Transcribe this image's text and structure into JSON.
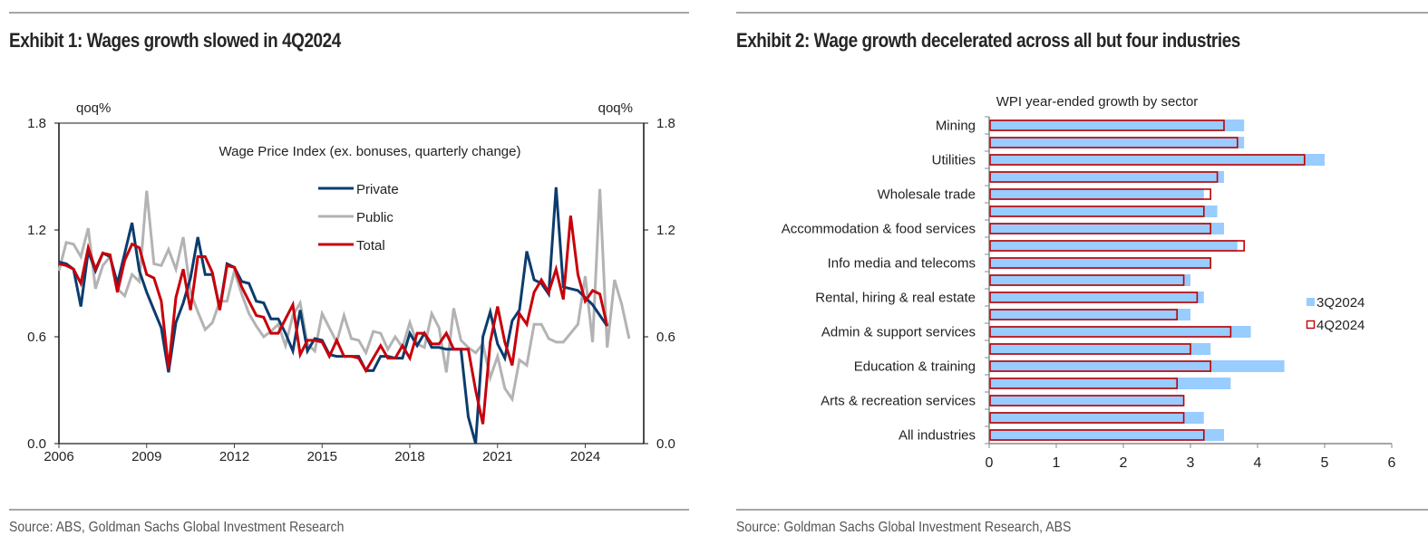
{
  "exhibit1": {
    "title": "Exhibit 1: Wages growth slowed in 4Q2024",
    "source": "Source: ABS, Goldman Sachs Global Investment Research"
  },
  "exhibit2": {
    "title": "Exhibit 2: Wage growth decelerated across all but four industries",
    "source": "Source: Goldman Sachs Global Investment Research, ABS"
  },
  "chart_data": [
    {
      "type": "line",
      "title": "Wage Price Index (ex. bonuses, quarterly change)",
      "ylabel_left": "qoq%",
      "ylabel_right": "qoq%",
      "xlabel": "",
      "xlim": [
        2006,
        2026
      ],
      "ylim": [
        0,
        1.8
      ],
      "x_ticks": [
        2006,
        2009,
        2012,
        2015,
        2018,
        2021,
        2024
      ],
      "y_ticks": [
        "0.0",
        "0.6",
        "1.2",
        "1.8"
      ],
      "legend_position": "upper-center",
      "grid": false,
      "x_start": 2006.0,
      "x_step": 0.25,
      "series": [
        {
          "name": "Private",
          "color": "#0b3c6e",
          "values": [
            1.02,
            1.01,
            0.98,
            0.77,
            1.08,
            0.97,
            1.07,
            1.05,
            0.9,
            1.07,
            1.24,
            0.97,
            0.85,
            0.75,
            0.65,
            0.4,
            0.68,
            0.79,
            0.93,
            1.16,
            0.95,
            0.95,
            0.76,
            1.01,
            0.99,
            0.91,
            0.9,
            0.8,
            0.79,
            0.7,
            0.7,
            0.62,
            0.52,
            0.75,
            0.52,
            0.59,
            0.58,
            0.5,
            0.49,
            0.49,
            0.49,
            0.49,
            0.41,
            0.41,
            0.49,
            0.49,
            0.48,
            0.48,
            0.62,
            0.55,
            0.62,
            0.54,
            0.54,
            0.53,
            0.53,
            0.53,
            0.15,
            0.0,
            0.6,
            0.74,
            0.56,
            0.48,
            0.69,
            0.75,
            1.08,
            0.92,
            0.9,
            0.84,
            1.44,
            0.88,
            0.87,
            0.86,
            0.82,
            0.78,
            0.72,
            0.66
          ]
        },
        {
          "name": "Public",
          "color": "#b3b3b3",
          "values": [
            0.97,
            1.13,
            1.12,
            1.05,
            1.21,
            0.87,
            1.0,
            1.05,
            0.87,
            0.83,
            0.95,
            0.91,
            1.42,
            1.01,
            1.0,
            1.09,
            0.98,
            1.16,
            0.85,
            0.74,
            0.64,
            0.68,
            0.8,
            0.8,
            0.97,
            0.84,
            0.73,
            0.66,
            0.6,
            0.63,
            0.67,
            0.55,
            0.72,
            0.79,
            0.56,
            0.52,
            0.73,
            0.65,
            0.57,
            0.72,
            0.59,
            0.58,
            0.51,
            0.63,
            0.62,
            0.53,
            0.6,
            0.54,
            0.68,
            0.56,
            0.54,
            0.73,
            0.65,
            0.4,
            0.76,
            0.58,
            0.54,
            0.51,
            0.56,
            0.37,
            0.49,
            0.31,
            0.25,
            0.47,
            0.44,
            0.67,
            0.67,
            0.59,
            0.57,
            0.57,
            0.62,
            0.67,
            0.94,
            0.57,
            1.43,
            0.54,
            0.92,
            0.78,
            0.59
          ]
        },
        {
          "name": "Total",
          "color": "#c8000a",
          "values": [
            1.01,
            1.0,
            0.98,
            0.9,
            1.1,
            0.98,
            1.07,
            1.06,
            0.85,
            1.03,
            1.12,
            1.1,
            0.95,
            0.93,
            0.8,
            0.42,
            0.82,
            0.98,
            0.75,
            1.05,
            1.05,
            0.96,
            0.75,
            1.0,
            0.99,
            0.88,
            0.8,
            0.72,
            0.71,
            0.62,
            0.62,
            0.7,
            0.78,
            0.5,
            0.58,
            0.58,
            0.57,
            0.49,
            0.58,
            0.49,
            0.49,
            0.48,
            0.41,
            0.48,
            0.55,
            0.48,
            0.48,
            0.55,
            0.48,
            0.62,
            0.62,
            0.56,
            0.56,
            0.62,
            0.53,
            0.53,
            0.53,
            0.3,
            0.11,
            0.57,
            0.77,
            0.57,
            0.44,
            0.73,
            0.67,
            0.85,
            0.92,
            0.85,
            0.98,
            0.81,
            1.28,
            0.95,
            0.8,
            0.86,
            0.84,
            0.66
          ]
        }
      ]
    },
    {
      "type": "bar",
      "orientation": "horizontal",
      "title": "WPI year-ended growth by sector",
      "xlabel": "",
      "ylabel": "",
      "xlim": [
        0,
        6
      ],
      "x_ticks": [
        0,
        1,
        2,
        3,
        4,
        5,
        6
      ],
      "legend_position": "right",
      "grid": false,
      "categories": [
        "Mining",
        "",
        "Utilities",
        "",
        "Wholesale trade",
        "",
        "Accommodation & food services",
        "",
        "Info media and telecoms",
        "",
        "Rental, hiring & real estate",
        "",
        "Admin & support services",
        "",
        "Education & training",
        "",
        "Arts & recreation services",
        "",
        "All industries"
      ],
      "series": [
        {
          "name": "3Q2024",
          "style": "filled",
          "color": "#99ccff",
          "values": [
            3.8,
            3.8,
            5.0,
            3.5,
            3.2,
            3.4,
            3.5,
            3.7,
            3.3,
            3.0,
            3.2,
            3.0,
            3.9,
            3.3,
            4.4,
            3.6,
            2.9,
            3.2,
            3.5
          ]
        },
        {
          "name": "4Q2024",
          "style": "outline",
          "color": "#c00000",
          "values": [
            3.5,
            3.7,
            4.7,
            3.4,
            3.3,
            3.2,
            3.3,
            3.8,
            3.3,
            2.9,
            3.1,
            2.8,
            3.6,
            3.0,
            3.3,
            2.8,
            2.9,
            2.9,
            3.2
          ]
        }
      ]
    }
  ]
}
